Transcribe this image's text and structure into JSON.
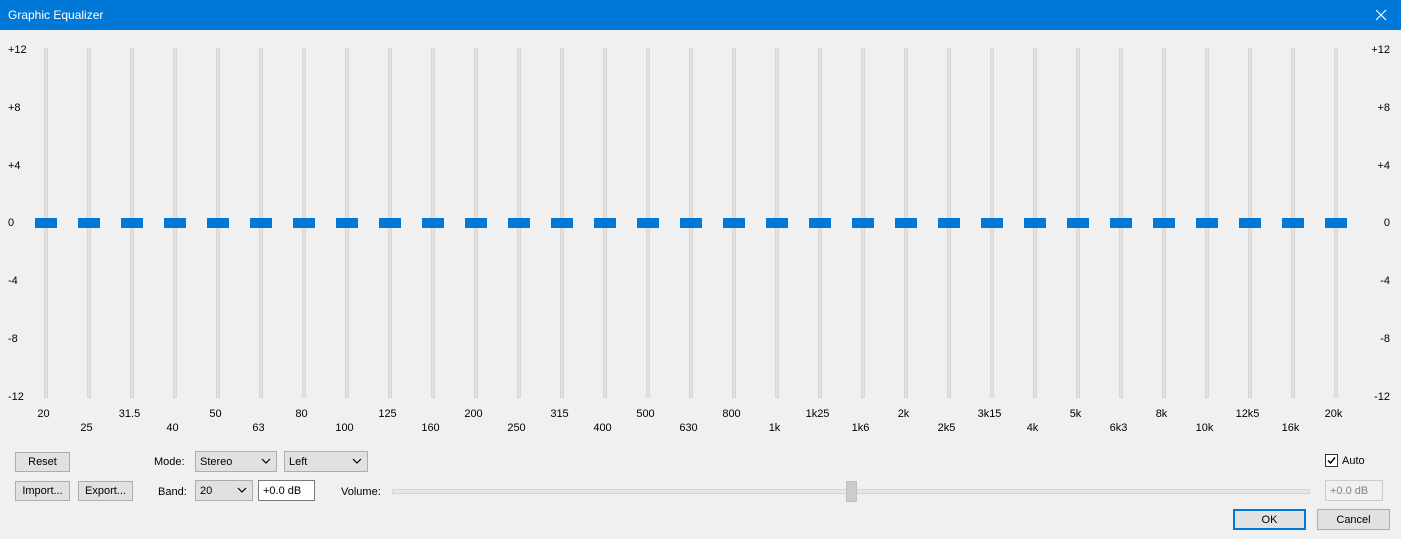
{
  "window": {
    "title": "Graphic Equalizer",
    "close_label": "✕"
  },
  "db_scale": [
    "+12",
    "+8",
    "+4",
    "0",
    "-4",
    "-8",
    "-12"
  ],
  "bands": [
    {
      "label": "20",
      "gain": 0
    },
    {
      "label": "25",
      "gain": 0
    },
    {
      "label": "31.5",
      "gain": 0
    },
    {
      "label": "40",
      "gain": 0
    },
    {
      "label": "50",
      "gain": 0
    },
    {
      "label": "63",
      "gain": 0
    },
    {
      "label": "80",
      "gain": 0
    },
    {
      "label": "100",
      "gain": 0
    },
    {
      "label": "125",
      "gain": 0
    },
    {
      "label": "160",
      "gain": 0
    },
    {
      "label": "200",
      "gain": 0
    },
    {
      "label": "250",
      "gain": 0
    },
    {
      "label": "315",
      "gain": 0
    },
    {
      "label": "400",
      "gain": 0
    },
    {
      "label": "500",
      "gain": 0
    },
    {
      "label": "630",
      "gain": 0
    },
    {
      "label": "800",
      "gain": 0
    },
    {
      "label": "1k",
      "gain": 0
    },
    {
      "label": "1k25",
      "gain": 0
    },
    {
      "label": "1k6",
      "gain": 0
    },
    {
      "label": "2k",
      "gain": 0
    },
    {
      "label": "2k5",
      "gain": 0
    },
    {
      "label": "3k15",
      "gain": 0
    },
    {
      "label": "4k",
      "gain": 0
    },
    {
      "label": "5k",
      "gain": 0
    },
    {
      "label": "6k3",
      "gain": 0
    },
    {
      "label": "8k",
      "gain": 0
    },
    {
      "label": "10k",
      "gain": 0
    },
    {
      "label": "12k5",
      "gain": 0
    },
    {
      "label": "16k",
      "gain": 0
    },
    {
      "label": "20k",
      "gain": 0
    }
  ],
  "gain_range": [
    -12,
    12
  ],
  "controls": {
    "reset_label": "Reset",
    "import_label": "Import...",
    "export_label": "Export...",
    "mode_label": "Mode:",
    "mode_value": "Stereo",
    "channel_value": "Left",
    "band_label": "Band:",
    "band_value": "20",
    "band_gain_value": "+0.0 dB",
    "volume_label": "Volume:",
    "volume_value": "+0.0 dB",
    "volume_level": 0.5,
    "auto_label": "Auto",
    "auto_checked": true,
    "ok_label": "OK",
    "cancel_label": "Cancel"
  },
  "colors": {
    "accent": "#0078d7"
  }
}
